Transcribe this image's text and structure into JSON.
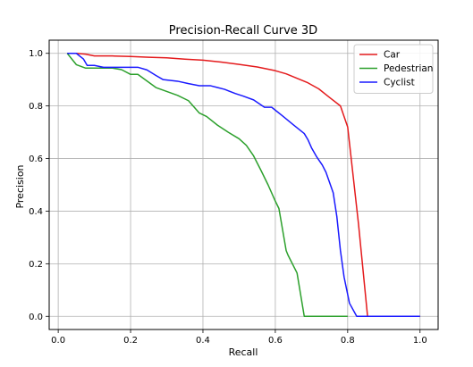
{
  "chart_data": {
    "type": "line",
    "title": "Precision-Recall Curve 3D",
    "xlabel": "Recall",
    "ylabel": "Precision",
    "xlim": [
      -0.025,
      1.05
    ],
    "ylim": [
      -0.05,
      1.05
    ],
    "xticks": [
      0.0,
      0.2,
      0.4,
      0.6,
      0.8,
      1.0
    ],
    "xtick_labels": [
      "0.0",
      "0.2",
      "0.4",
      "0.6",
      "0.8",
      "1.0"
    ],
    "yticks": [
      0.0,
      0.2,
      0.4,
      0.6,
      0.8,
      1.0
    ],
    "ytick_labels": [
      "0.0",
      "0.2",
      "0.4",
      "0.6",
      "0.8",
      "1.0"
    ],
    "grid": true,
    "legend_position": "top-right",
    "series": [
      {
        "name": "Car",
        "color": "#e41a1c",
        "points": [
          [
            0.025,
            1.0
          ],
          [
            0.05,
            1.0
          ],
          [
            0.075,
            0.997
          ],
          [
            0.1,
            0.99
          ],
          [
            0.15,
            0.99
          ],
          [
            0.2,
            0.988
          ],
          [
            0.25,
            0.985
          ],
          [
            0.3,
            0.983
          ],
          [
            0.35,
            0.978
          ],
          [
            0.4,
            0.974
          ],
          [
            0.45,
            0.967
          ],
          [
            0.5,
            0.958
          ],
          [
            0.55,
            0.948
          ],
          [
            0.6,
            0.934
          ],
          [
            0.63,
            0.922
          ],
          [
            0.66,
            0.905
          ],
          [
            0.69,
            0.888
          ],
          [
            0.72,
            0.865
          ],
          [
            0.75,
            0.832
          ],
          [
            0.78,
            0.8
          ],
          [
            0.8,
            0.72
          ],
          [
            0.83,
            0.35
          ],
          [
            0.855,
            0.0
          ],
          [
            1.0,
            0.0
          ]
        ]
      },
      {
        "name": "Pedestrian",
        "color": "#2ca02c",
        "points": [
          [
            0.025,
            1.0
          ],
          [
            0.05,
            0.957
          ],
          [
            0.075,
            0.944
          ],
          [
            0.1,
            0.944
          ],
          [
            0.125,
            0.944
          ],
          [
            0.15,
            0.944
          ],
          [
            0.175,
            0.938
          ],
          [
            0.2,
            0.92
          ],
          [
            0.22,
            0.92
          ],
          [
            0.245,
            0.895
          ],
          [
            0.27,
            0.87
          ],
          [
            0.3,
            0.855
          ],
          [
            0.33,
            0.84
          ],
          [
            0.36,
            0.82
          ],
          [
            0.39,
            0.773
          ],
          [
            0.41,
            0.76
          ],
          [
            0.44,
            0.727
          ],
          [
            0.47,
            0.7
          ],
          [
            0.5,
            0.675
          ],
          [
            0.52,
            0.65
          ],
          [
            0.54,
            0.61
          ],
          [
            0.56,
            0.556
          ],
          [
            0.58,
            0.5
          ],
          [
            0.6,
            0.438
          ],
          [
            0.61,
            0.41
          ],
          [
            0.63,
            0.25
          ],
          [
            0.635,
            0.233
          ],
          [
            0.66,
            0.165
          ],
          [
            0.68,
            0.0
          ],
          [
            0.8,
            0.0
          ]
        ]
      },
      {
        "name": "Cyclist",
        "color": "#1a1aff",
        "points": [
          [
            0.025,
            1.0
          ],
          [
            0.05,
            1.0
          ],
          [
            0.07,
            0.978
          ],
          [
            0.08,
            0.954
          ],
          [
            0.1,
            0.954
          ],
          [
            0.125,
            0.947
          ],
          [
            0.15,
            0.947
          ],
          [
            0.2,
            0.947
          ],
          [
            0.22,
            0.947
          ],
          [
            0.245,
            0.937
          ],
          [
            0.27,
            0.916
          ],
          [
            0.29,
            0.9
          ],
          [
            0.33,
            0.894
          ],
          [
            0.36,
            0.885
          ],
          [
            0.39,
            0.877
          ],
          [
            0.42,
            0.877
          ],
          [
            0.44,
            0.87
          ],
          [
            0.46,
            0.863
          ],
          [
            0.49,
            0.847
          ],
          [
            0.51,
            0.838
          ],
          [
            0.54,
            0.823
          ],
          [
            0.57,
            0.795
          ],
          [
            0.59,
            0.795
          ],
          [
            0.62,
            0.762
          ],
          [
            0.65,
            0.728
          ],
          [
            0.68,
            0.695
          ],
          [
            0.69,
            0.672
          ],
          [
            0.7,
            0.641
          ],
          [
            0.715,
            0.605
          ],
          [
            0.73,
            0.575
          ],
          [
            0.74,
            0.548
          ],
          [
            0.76,
            0.47
          ],
          [
            0.77,
            0.38
          ],
          [
            0.78,
            0.25
          ],
          [
            0.79,
            0.15
          ],
          [
            0.805,
            0.05
          ],
          [
            0.825,
            0.0
          ],
          [
            1.0,
            0.0
          ]
        ]
      }
    ]
  }
}
